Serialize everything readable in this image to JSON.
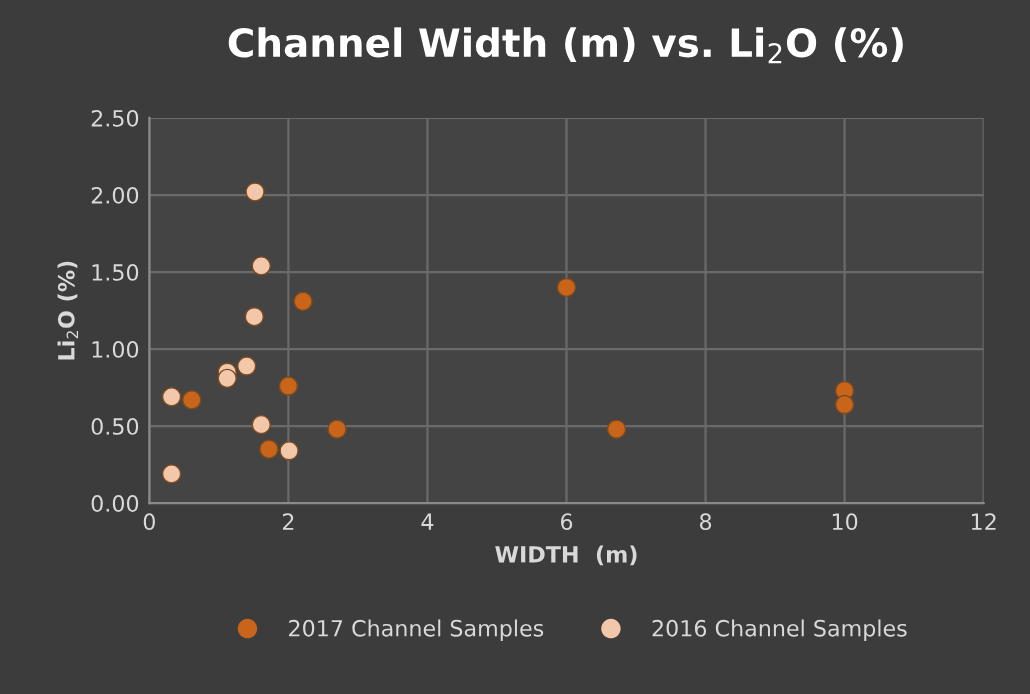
{
  "chart_data": {
    "type": "scatter",
    "title": "Channel Width (m) vs. Li$_{2}$O (%)",
    "xlabel": "WIDTH  (m)",
    "ylabel": "Li$_{2}$O (%)",
    "series": [
      {
        "name": "2017 Channel Samples",
        "color": "#c8651b",
        "x": [
          2.21,
          2.0,
          0.61,
          2.7,
          1.72,
          6.0,
          6.72,
          10.0,
          10.0
        ],
        "values": [
          1.31,
          0.76,
          0.67,
          0.48,
          0.35,
          1.4,
          0.48,
          0.73,
          0.64
        ]
      },
      {
        "name": "2016 Channel Samples",
        "color": "#f2c7aa",
        "x": [
          1.52,
          1.61,
          1.51,
          1.4,
          1.12,
          1.12,
          0.32,
          1.61,
          2.01,
          0.32
        ],
        "values": [
          2.02,
          1.54,
          1.21,
          0.89,
          0.85,
          0.81,
          0.69,
          0.51,
          0.34,
          0.19
        ]
      }
    ],
    "xlim": [
      0,
      12
    ],
    "xticks": [
      0,
      2,
      4,
      6,
      8,
      10,
      12
    ],
    "ylim": [
      0,
      2.5
    ],
    "yticks": [
      {
        "value": 0,
        "label": "0.00"
      },
      {
        "value": 0.5,
        "label": "0.50"
      },
      {
        "value": 1.0,
        "label": "1.00"
      },
      {
        "value": 1.5,
        "label": "1.50"
      },
      {
        "value": 2.0,
        "label": "2.00"
      },
      {
        "value": 2.5,
        "label": "2.50"
      }
    ],
    "grid": true,
    "legend": "bottom",
    "marker": "circle"
  }
}
